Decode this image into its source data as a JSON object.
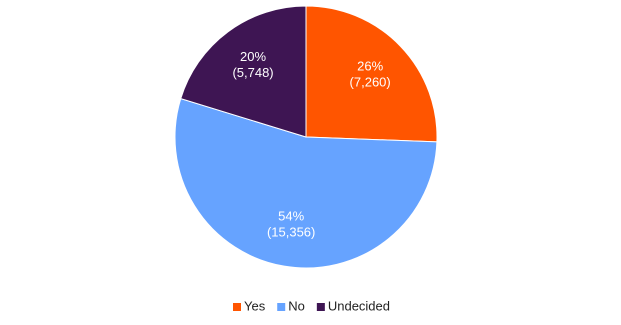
{
  "chart_data": {
    "type": "pie",
    "categories": [
      "Yes",
      "No",
      "Undecided"
    ],
    "values": [
      7260,
      15356,
      5748
    ],
    "value_labels": [
      "(7,260)",
      "(15,356)",
      "(5,748)"
    ],
    "percents": [
      26,
      54,
      20
    ],
    "percent_labels": [
      "26%",
      "54%",
      "20%"
    ],
    "colors": [
      "#ff5500",
      "#66a3ff",
      "#3e1553"
    ],
    "legend": "bottom"
  }
}
